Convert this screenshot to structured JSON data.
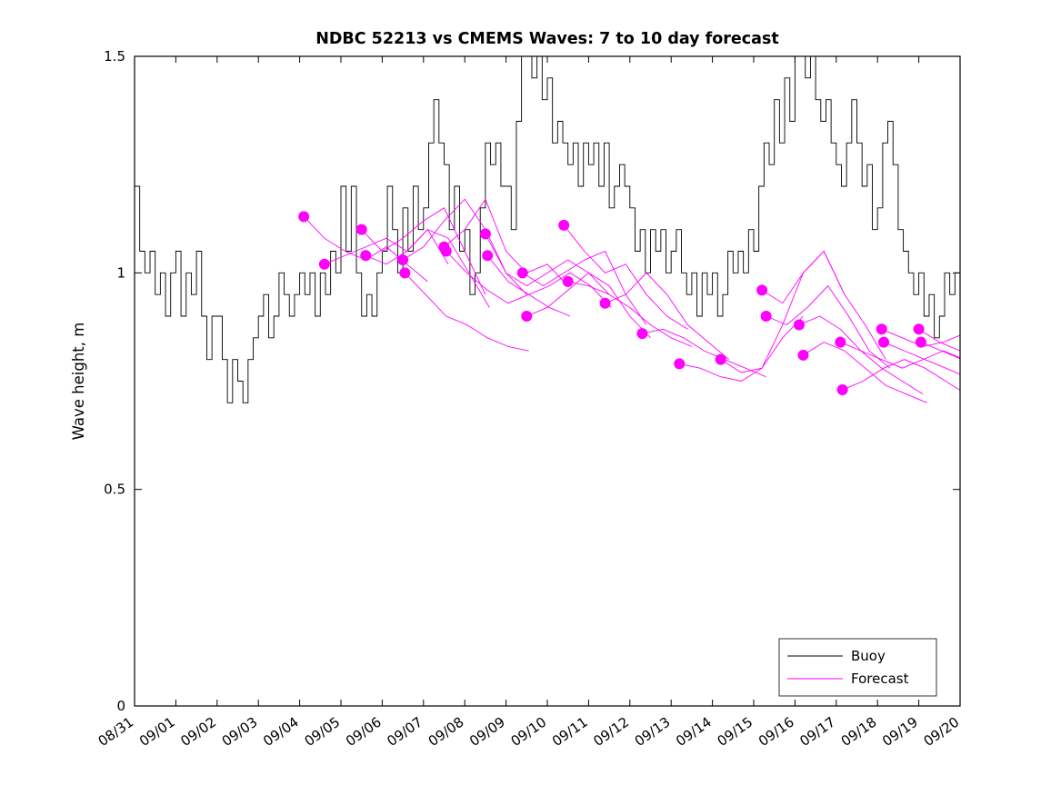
{
  "figure": {
    "background": "#ffffff",
    "axis_color": "#000000",
    "legend": {
      "position": "bottom-right",
      "items": [
        {
          "label": "Buoy",
          "color": "#000000"
        },
        {
          "label": "Forecast",
          "color": "#ff00ff"
        }
      ]
    }
  },
  "chart_data": {
    "type": "line",
    "title": "NDBC 52213 vs CMEMS Waves: 7 to 10 day forecast",
    "xlabel": "",
    "ylabel": "Wave height, m",
    "ylim": [
      0,
      1.5
    ],
    "yticks": [
      0,
      0.5,
      1,
      1.5
    ],
    "ytick_labels": [
      "0",
      "0.5",
      "1",
      "1.5"
    ],
    "xtick_labels": [
      "08/31",
      "09/01",
      "09/02",
      "09/03",
      "09/04",
      "09/05",
      "09/06",
      "09/07",
      "09/08",
      "09/09",
      "09/10",
      "09/11",
      "09/12",
      "09/13",
      "09/14",
      "09/15",
      "09/16",
      "09/17",
      "09/18",
      "09/19",
      "09/20"
    ],
    "x_units": "days since 08/31",
    "grid": false,
    "legend_entries": [
      "Buoy",
      "Forecast"
    ],
    "series": [
      {
        "name": "Buoy",
        "style": "step",
        "color": "#000000",
        "x_start_day": 0,
        "x_step_days": 0.125,
        "values": [
          1.2,
          1.05,
          1.0,
          1.05,
          0.95,
          1.0,
          0.9,
          1.0,
          1.05,
          0.9,
          1.0,
          0.95,
          1.05,
          0.9,
          0.8,
          0.9,
          0.9,
          0.8,
          0.7,
          0.8,
          0.75,
          0.7,
          0.8,
          0.85,
          0.9,
          0.95,
          0.85,
          0.9,
          1.0,
          0.95,
          0.9,
          0.95,
          1.0,
          0.95,
          1.0,
          0.9,
          1.0,
          0.95,
          1.05,
          1.0,
          1.2,
          1.05,
          1.2,
          1.0,
          0.9,
          0.95,
          0.9,
          1.0,
          1.05,
          1.2,
          1.1,
          1.0,
          1.15,
          1.05,
          1.2,
          1.1,
          1.15,
          1.3,
          1.4,
          1.3,
          1.25,
          1.1,
          1.2,
          1.05,
          1.1,
          0.95,
          1.0,
          1.15,
          1.3,
          1.25,
          1.3,
          1.2,
          1.2,
          1.1,
          1.35,
          1.5,
          1.55,
          1.45,
          1.5,
          1.4,
          1.45,
          1.3,
          1.35,
          1.3,
          1.25,
          1.3,
          1.2,
          1.3,
          1.25,
          1.3,
          1.2,
          1.3,
          1.15,
          1.2,
          1.25,
          1.2,
          1.15,
          1.05,
          1.1,
          1.0,
          1.1,
          1.05,
          1.1,
          1.0,
          1.05,
          1.1,
          1.0,
          0.95,
          1.0,
          0.9,
          1.0,
          0.95,
          1.0,
          0.9,
          0.95,
          1.05,
          1.0,
          1.05,
          1.0,
          1.1,
          1.05,
          1.2,
          1.3,
          1.25,
          1.4,
          1.3,
          1.45,
          1.35,
          1.5,
          1.55,
          1.45,
          1.5,
          1.4,
          1.35,
          1.4,
          1.3,
          1.25,
          1.2,
          1.3,
          1.4,
          1.3,
          1.2,
          1.25,
          1.1,
          1.15,
          1.3,
          1.35,
          1.25,
          1.1,
          1.05,
          1.0,
          0.95,
          1.0,
          0.9,
          0.95,
          0.85,
          0.9,
          1.0,
          0.95,
          1.0,
          1.05
        ]
      }
    ],
    "forecasts": {
      "name": "Forecast",
      "color": "#ff00ff",
      "marker": "filled-circle-at-start",
      "x_step_days": 0.5,
      "runs": [
        {
          "start_day": 4.1,
          "values": [
            1.13,
            1.08,
            1.05,
            1.03,
            1.06,
            1.02,
            0.98
          ]
        },
        {
          "start_day": 4.6,
          "values": [
            1.02,
            1.04,
            1.06,
            1.08,
            1.05,
            1.1,
            1.02
          ]
        },
        {
          "start_day": 5.5,
          "values": [
            1.1,
            1.05,
            1.08,
            1.12,
            1.15,
            1.05,
            0.95
          ]
        },
        {
          "start_day": 5.6,
          "values": [
            1.04,
            1.02,
            1.05,
            1.1,
            1.08,
            1.0,
            0.92
          ]
        },
        {
          "start_day": 6.5,
          "values": [
            1.03,
            1.06,
            1.12,
            1.17,
            1.1,
            1.0,
            0.95
          ]
        },
        {
          "start_day": 6.55,
          "values": [
            1.0,
            0.95,
            0.9,
            0.88,
            0.85,
            0.83,
            0.82
          ]
        },
        {
          "start_day": 7.5,
          "values": [
            1.06,
            1.1,
            1.17,
            1.05,
            1.0,
            1.02,
            0.97
          ]
        },
        {
          "start_day": 7.55,
          "values": [
            1.05,
            1.0,
            0.96,
            0.93,
            0.95,
            0.92,
            0.9
          ]
        },
        {
          "start_day": 8.5,
          "values": [
            1.09,
            1.0,
            0.97,
            1.0,
            1.03,
            1.0,
            0.95
          ]
        },
        {
          "start_day": 8.55,
          "values": [
            1.04,
            0.98,
            0.95,
            0.97,
            1.0,
            0.97,
            0.92
          ]
        },
        {
          "start_day": 9.4,
          "values": [
            1.0,
            0.97,
            1.0,
            1.03,
            1.05,
            0.95,
            0.88
          ]
        },
        {
          "start_day": 9.5,
          "values": [
            0.9,
            0.92,
            0.96,
            1.0,
            0.97,
            0.9,
            0.85
          ]
        },
        {
          "start_day": 10.4,
          "values": [
            1.11,
            1.05,
            1.0,
            1.02,
            0.95,
            0.9,
            0.87
          ]
        },
        {
          "start_day": 10.5,
          "values": [
            0.98,
            0.97,
            0.95,
            0.92,
            0.88,
            0.85,
            0.83
          ]
        },
        {
          "start_day": 11.4,
          "values": [
            0.93,
            0.95,
            1.0,
            0.95,
            0.88,
            0.84,
            0.8
          ]
        },
        {
          "start_day": 12.3,
          "values": [
            0.86,
            0.87,
            0.85,
            0.82,
            0.8,
            0.78,
            0.76
          ]
        },
        {
          "start_day": 13.2,
          "values": [
            0.79,
            0.78,
            0.76,
            0.75,
            0.78,
            0.85,
            0.9
          ]
        },
        {
          "start_day": 14.2,
          "values": [
            0.8,
            0.77,
            0.78,
            0.88,
            1.0,
            1.05,
            0.95
          ]
        },
        {
          "start_day": 15.2,
          "values": [
            0.96,
            0.93,
            1.0,
            1.05,
            0.95,
            0.88,
            0.8
          ]
        },
        {
          "start_day": 15.3,
          "values": [
            0.9,
            0.88,
            0.92,
            0.97,
            0.9,
            0.82,
            0.78
          ]
        },
        {
          "start_day": 16.1,
          "values": [
            0.88,
            0.9,
            0.87,
            0.82,
            0.78,
            0.75,
            0.72
          ]
        },
        {
          "start_day": 16.2,
          "values": [
            0.81,
            0.84,
            0.82,
            0.78,
            0.74,
            0.72,
            0.7
          ]
        },
        {
          "start_day": 17.1,
          "values": [
            0.84,
            0.82,
            0.8,
            0.78,
            0.8,
            0.82,
            0.8
          ]
        },
        {
          "start_day": 17.15,
          "values": [
            0.73,
            0.75,
            0.78,
            0.8,
            0.78,
            0.75,
            0.72
          ]
        },
        {
          "start_day": 18.1,
          "values": [
            0.87,
            0.85,
            0.83,
            0.84,
            0.86,
            0.83,
            0.8
          ]
        },
        {
          "start_day": 18.15,
          "values": [
            0.84,
            0.82,
            0.8,
            0.78,
            0.76,
            0.74,
            0.72
          ]
        },
        {
          "start_day": 19.0,
          "values": [
            0.87,
            0.84,
            0.82
          ]
        },
        {
          "start_day": 19.05,
          "values": [
            0.84,
            0.82,
            0.8
          ]
        }
      ]
    }
  }
}
